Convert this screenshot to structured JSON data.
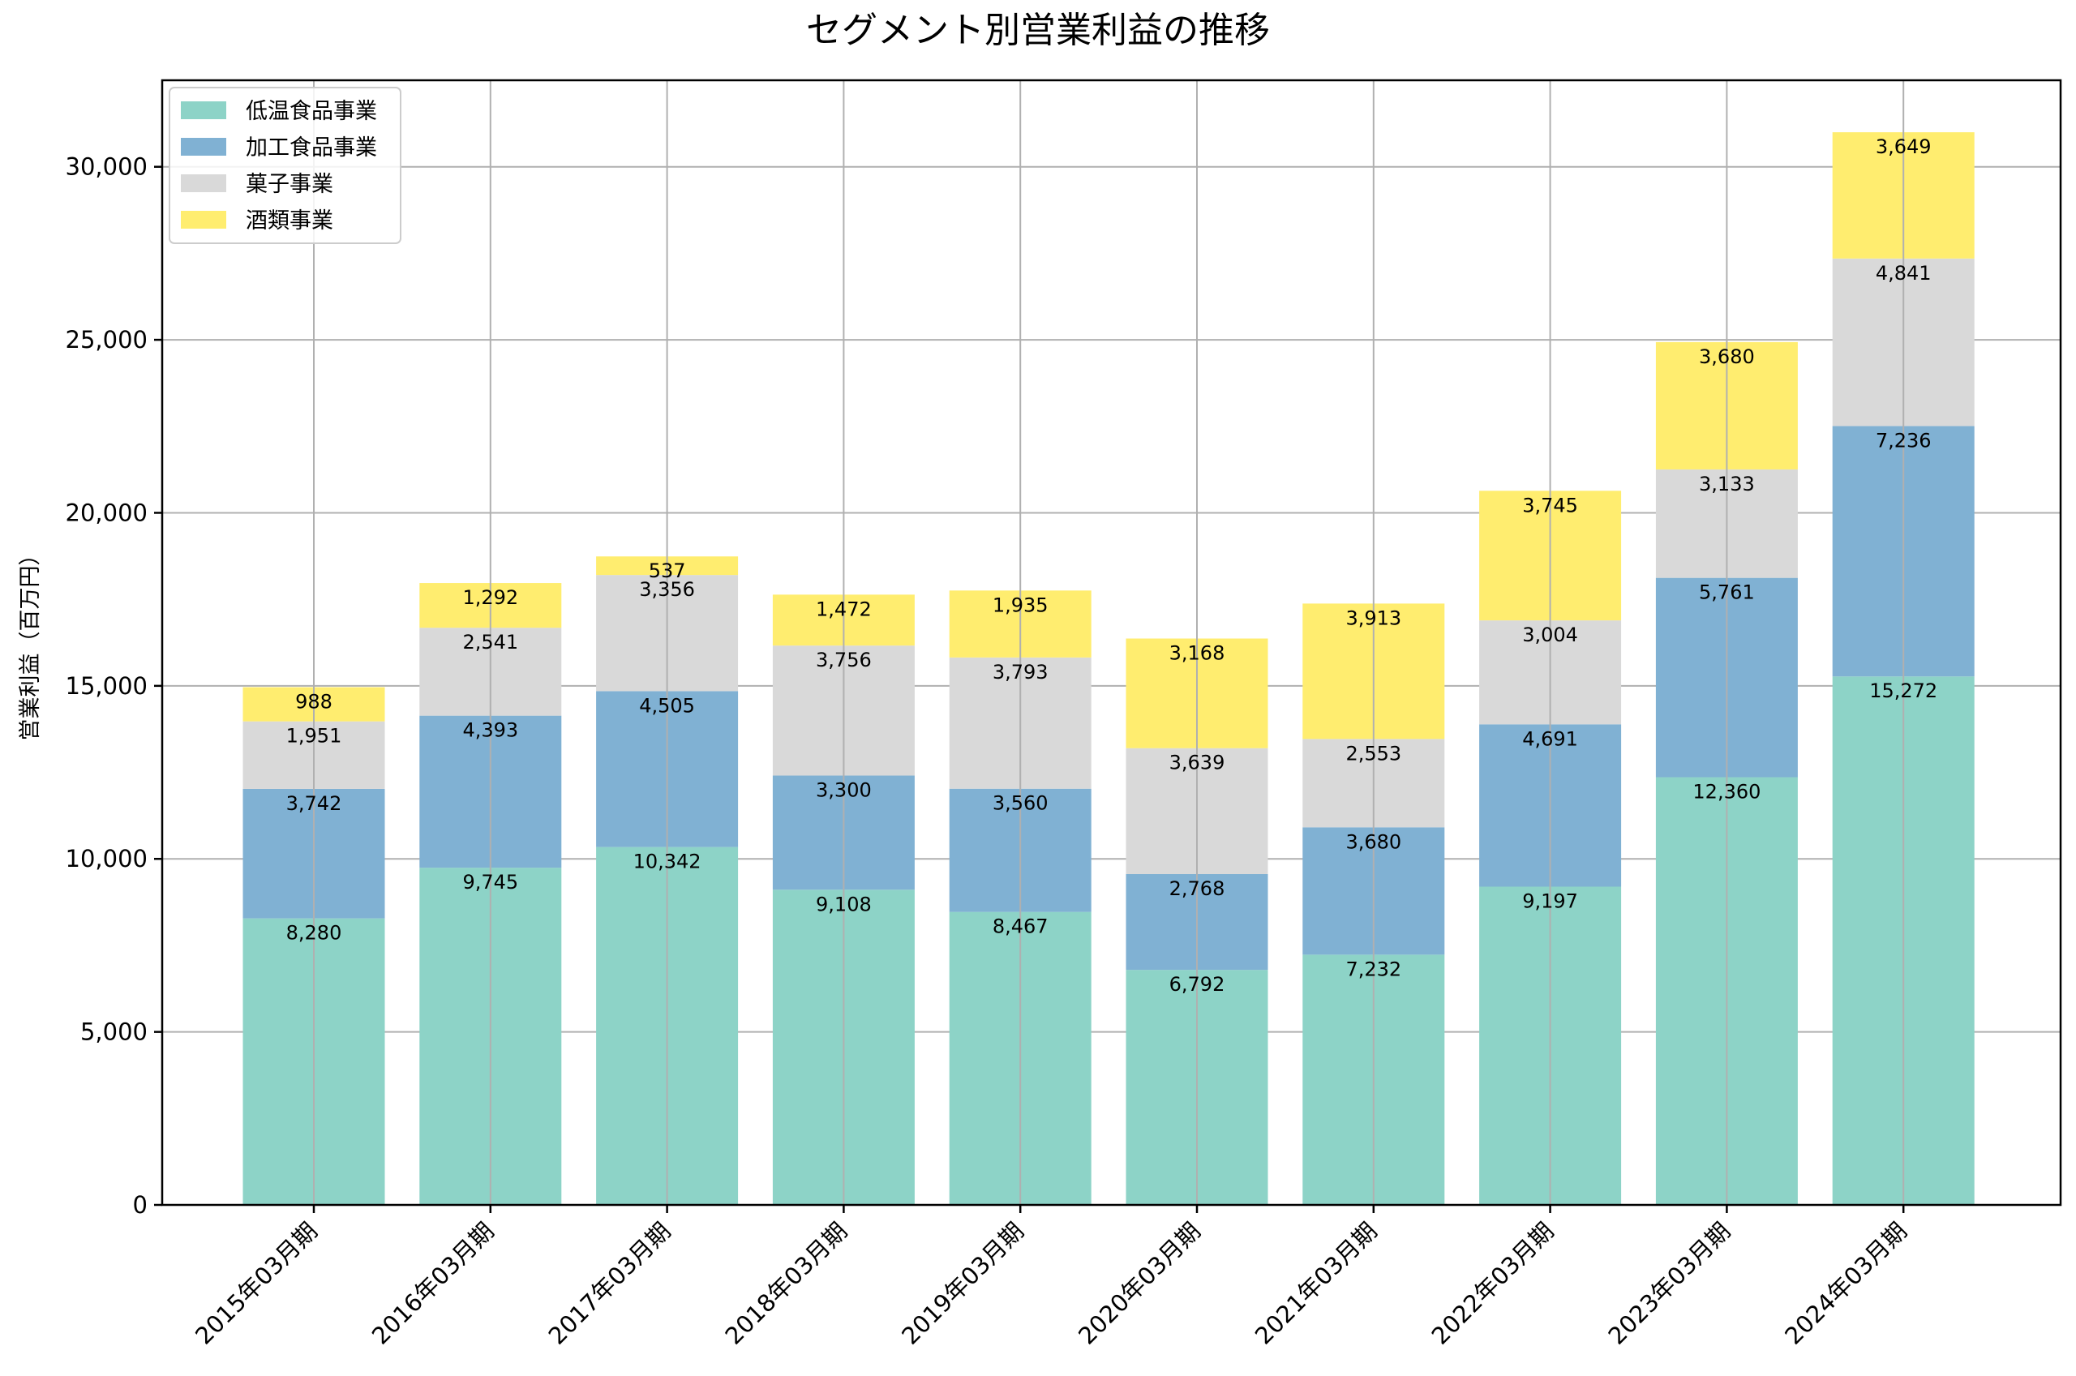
{
  "chart_data": {
    "type": "bar",
    "stacked": true,
    "title": "セグメント別営業利益の推移",
    "ylabel": "営業利益（百万円）",
    "xlabel": "",
    "ylim": [
      0,
      32500
    ],
    "yticks": [
      0,
      5000,
      10000,
      15000,
      20000,
      25000,
      30000
    ],
    "ytick_labels": [
      "0",
      "5,000",
      "10,000",
      "15,000",
      "20,000",
      "25,000",
      "30,000"
    ],
    "grid": true,
    "legend_position": "top-left",
    "categories": [
      "2015年03月期",
      "2016年03月期",
      "2017年03月期",
      "2018年03月期",
      "2019年03月期",
      "2020年03月期",
      "2021年03月期",
      "2022年03月期",
      "2023年03月期",
      "2024年03月期"
    ],
    "series": [
      {
        "name": "低温食品事業",
        "color": "#8dd3c7",
        "values": [
          8280,
          9745,
          10342,
          9108,
          8467,
          6792,
          7232,
          9197,
          12360,
          15272
        ],
        "labels": [
          "8,280",
          "9,745",
          "10,342",
          "9,108",
          "8,467",
          "6,792",
          "7,232",
          "9,197",
          "12,360",
          "15,272"
        ]
      },
      {
        "name": "加工食品事業",
        "color": "#80b1d3",
        "values": [
          3742,
          4393,
          4505,
          3300,
          3560,
          2768,
          3680,
          4691,
          5761,
          7236
        ],
        "labels": [
          "3,742",
          "4,393",
          "4,505",
          "3,300",
          "3,560",
          "2,768",
          "3,680",
          "4,691",
          "5,761",
          "7,236"
        ]
      },
      {
        "name": "菓子事業",
        "color": "#d9d9d9",
        "values": [
          1951,
          2541,
          3356,
          3756,
          3793,
          3639,
          2553,
          3004,
          3133,
          4841
        ],
        "labels": [
          "1,951",
          "2,541",
          "3,356",
          "3,756",
          "3,793",
          "3,639",
          "2,553",
          "3,004",
          "3,133",
          "4,841"
        ]
      },
      {
        "name": "酒類事業",
        "color": "#ffed6f",
        "values": [
          988,
          1292,
          537,
          1472,
          1935,
          3168,
          3913,
          3745,
          3680,
          3649
        ],
        "labels": [
          "988",
          "1,292",
          "537",
          "1,472",
          "1,935",
          "3,168",
          "3,913",
          "3,745",
          "3,680",
          "3,649"
        ]
      }
    ]
  }
}
